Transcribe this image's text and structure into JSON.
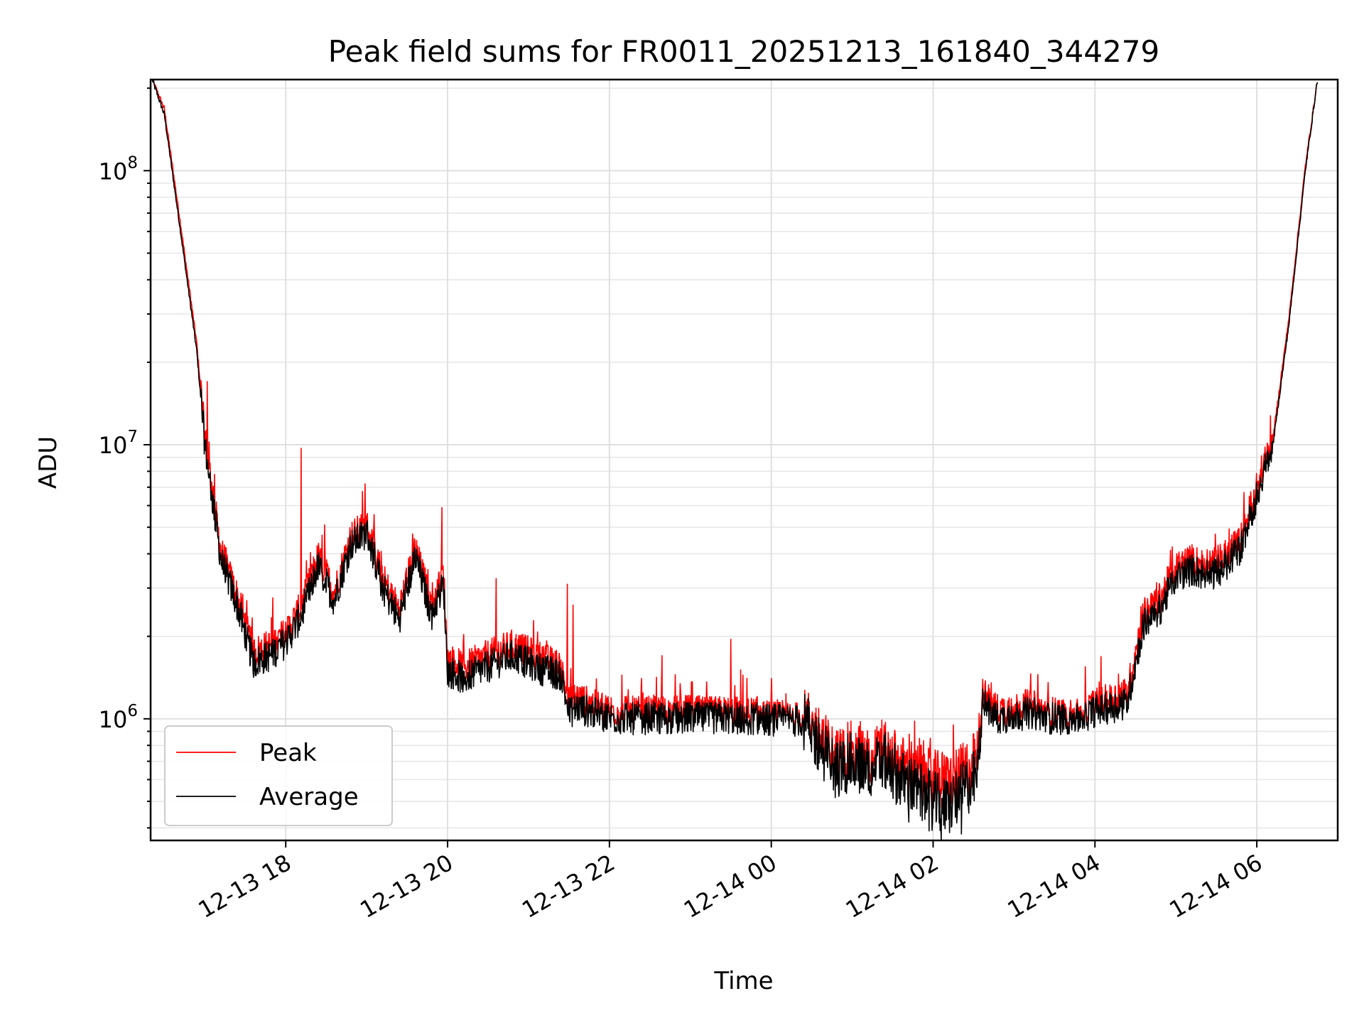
{
  "chart_data": {
    "type": "line",
    "title": "Peak field sums for FR0011_20251213_161840_344279",
    "xlabel": "Time",
    "ylabel": "ADU",
    "yscale": "log",
    "ylim": [
      360000,
      215000000
    ],
    "xlim_hours": [
      16.33,
      31.0
    ],
    "grid": true,
    "legend_position": "lower-left",
    "x_ticks": [
      {
        "label": "12-13 18",
        "hour": 18
      },
      {
        "label": "12-13 20",
        "hour": 20
      },
      {
        "label": "12-13 22",
        "hour": 22
      },
      {
        "label": "12-14 00",
        "hour": 24
      },
      {
        "label": "12-14 02",
        "hour": 26
      },
      {
        "label": "12-14 04",
        "hour": 28
      },
      {
        "label": "12-14 06",
        "hour": 30
      }
    ],
    "y_ticks": [
      {
        "base": "10",
        "exp": "6",
        "value": 1000000
      },
      {
        "base": "10",
        "exp": "7",
        "value": 10000000
      },
      {
        "base": "10",
        "exp": "8",
        "value": 100000000
      }
    ],
    "series": [
      {
        "name": "Peak",
        "color": "#ff0000"
      },
      {
        "name": "Average",
        "color": "#000000"
      }
    ],
    "x_hours": [
      16.35,
      16.5,
      16.7,
      16.9,
      17.0,
      17.2,
      17.4,
      17.6,
      17.8,
      18.0,
      18.2,
      18.4,
      18.6,
      18.8,
      19.0,
      19.2,
      19.4,
      19.6,
      19.8,
      19.95,
      20.0,
      20.2,
      20.4,
      20.6,
      20.8,
      21.0,
      21.2,
      21.4,
      21.5,
      21.6,
      21.8,
      22.0,
      22.2,
      22.4,
      22.6,
      22.8,
      23.0,
      23.2,
      23.4,
      23.6,
      23.8,
      24.0,
      24.2,
      24.4,
      24.6,
      24.8,
      25.0,
      25.2,
      25.4,
      25.6,
      25.8,
      26.0,
      26.2,
      26.4,
      26.55,
      26.6,
      26.8,
      27.0,
      27.2,
      27.4,
      27.6,
      27.8,
      28.0,
      28.2,
      28.4,
      28.6,
      28.8,
      29.0,
      29.2,
      29.4,
      29.6,
      29.8,
      30.0,
      30.2,
      30.4,
      30.6,
      30.75
    ],
    "average_values": [
      215000000,
      160000000,
      60000000,
      22000000,
      10000000,
      3800000,
      2600000,
      1600000,
      1700000,
      1900000,
      2400000,
      3600000,
      2700000,
      4300000,
      4800000,
      3000000,
      2300000,
      3900000,
      2400000,
      3100000,
      1500000,
      1400000,
      1500000,
      1600000,
      1700000,
      1600000,
      1500000,
      1450000,
      1050000,
      1100000,
      1050000,
      1010000,
      1000000,
      1000000,
      1010000,
      1000000,
      1010000,
      1000000,
      1010000,
      1000000,
      1000000,
      990000,
      990000,
      980000,
      800000,
      650000,
      700000,
      650000,
      700000,
      600000,
      550000,
      500000,
      480000,
      560000,
      620000,
      1150000,
      1000000,
      1030000,
      1050000,
      1010000,
      1000000,
      1000000,
      1070000,
      1100000,
      1150000,
      2200000,
      2500000,
      3300000,
      3500000,
      3300000,
      3600000,
      4200000,
      6500000,
      10000000,
      28000000,
      100000000,
      215000000
    ],
    "peak_values": [
      215000000,
      168000000,
      64000000,
      23500000,
      10800000,
      4100000,
      2800000,
      1750000,
      1850000,
      2050000,
      2600000,
      3900000,
      2900000,
      4600000,
      5100000,
      3250000,
      2500000,
      4200000,
      2600000,
      3400000,
      1650000,
      1550000,
      1650000,
      1750000,
      1850000,
      1750000,
      1650000,
      1550000,
      1150000,
      1200000,
      1120000,
      1080000,
      1060000,
      1050000,
      1070000,
      1060000,
      1070000,
      1050000,
      1060000,
      1050000,
      1050000,
      1010000,
      1010000,
      1010000,
      870000,
      720000,
      770000,
      720000,
      760000,
      680000,
      640000,
      600000,
      590000,
      650000,
      720000,
      1250000,
      1080000,
      1100000,
      1120000,
      1060000,
      1040000,
      1040000,
      1130000,
      1180000,
      1250000,
      2400000,
      2750000,
      3600000,
      3800000,
      3600000,
      3900000,
      4500000,
      7000000,
      10600000,
      29500000,
      104000000,
      215000000
    ],
    "peak_spikes": [
      {
        "hour": 17.03,
        "value": 17000000
      },
      {
        "hour": 17.12,
        "value": 7800000
      },
      {
        "hour": 18.19,
        "value": 9700000
      },
      {
        "hour": 18.48,
        "value": 5100000
      },
      {
        "hour": 18.98,
        "value": 7200000
      },
      {
        "hour": 19.93,
        "value": 5900000
      },
      {
        "hour": 20.6,
        "value": 3250000
      },
      {
        "hour": 21.48,
        "value": 3100000
      },
      {
        "hour": 21.55,
        "value": 2600000
      },
      {
        "hour": 22.65,
        "value": 1700000
      },
      {
        "hour": 23.5,
        "value": 1950000
      },
      {
        "hour": 25.35,
        "value": 920000
      },
      {
        "hour": 26.25,
        "value": 950000
      }
    ],
    "average_dips": [
      {
        "hour": 25.7,
        "value": 420000
      },
      {
        "hour": 25.95,
        "value": 390000
      },
      {
        "hour": 26.1,
        "value": 360000
      },
      {
        "hour": 26.35,
        "value": 380000
      }
    ]
  },
  "legend": {
    "peak_label": "Peak",
    "average_label": "Average"
  }
}
